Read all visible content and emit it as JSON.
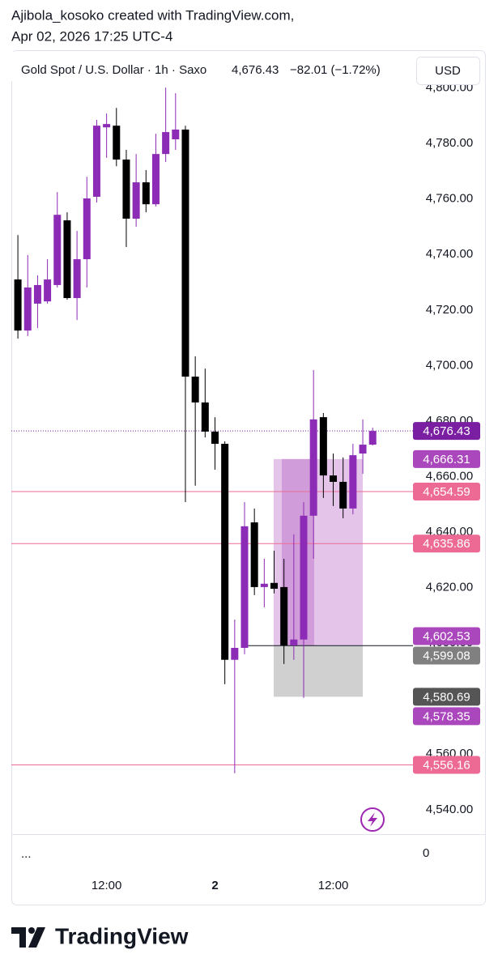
{
  "attribution": [
    "Ajibola_kosoko created with TradingView.com,",
    "Apr 02, 2026 17:25 UTC-4"
  ],
  "brand": "TradingView",
  "chart_data": {
    "type": "candlestick",
    "title": "Gold Spot / U.S. Dollar · 1h · Saxo",
    "last": "4,676.43",
    "change": "−82.01 (−1.72%)",
    "currency": "USD",
    "more": "...",
    "volume_axis_label": 0,
    "categories": [
      null,
      null,
      null,
      null,
      null,
      null,
      null,
      null,
      null,
      "12:00",
      null,
      null,
      null,
      null,
      null,
      null,
      null,
      null,
      null,
      null,
      "2",
      null,
      null,
      null,
      null,
      null,
      null,
      null,
      null,
      null,
      null,
      null,
      "12:00",
      null,
      null,
      null,
      null
    ],
    "open": [
      4731.0,
      4712.6,
      4722.3,
      4723.1,
      4729.0,
      4752.3,
      4724.3,
      4738.3,
      4760.8,
      4785.8,
      4786.4,
      4774.2,
      4752.9,
      4766.0,
      4758.1,
      4776.2,
      4781.5,
      4785.0,
      4696.0,
      4686.7,
      4676.2,
      4671.8,
      4594.0,
      4598.3,
      4643.5,
      4620.2,
      4621.7,
      4620.2,
      4599.2,
      4601.3,
      4645.9,
      4681.4,
      4660.4,
      4658.1,
      4648.5,
      4668.3,
      4671.5
    ],
    "high": [
      4747.0,
      4739.8,
      4732.5,
      4738.3,
      4762.5,
      4755.2,
      4748.5,
      4768.0,
      4788.5,
      4790.8,
      4792.8,
      4777.7,
      4776.2,
      4770.4,
      4783.5,
      4800.1,
      4798.1,
      4786.4,
      4703.3,
      4698.9,
      4681.4,
      4672.7,
      4608.5,
      4650.8,
      4648.5,
      4630.4,
      4633.3,
      4630.4,
      4639.2,
      4650.8,
      4698.4,
      4682.9,
      4668.3,
      4666.9,
      4671.8,
      4680.6,
      4677.6
    ],
    "low": [
      4709.7,
      4710.6,
      4713.5,
      4722.3,
      4728.1,
      4723.7,
      4716.4,
      4728.1,
      4758.7,
      4774.8,
      4771.8,
      4742.7,
      4750.0,
      4755.2,
      4757.3,
      4773.3,
      4777.7,
      4650.8,
      4656.7,
      4674.1,
      4662.5,
      4585.2,
      4553.1,
      4596.0,
      4617.3,
      4612.9,
      4617.9,
      4592.5,
      4594.0,
      4580.3,
      4630.4,
      4652.3,
      4649.4,
      4645.0,
      4646.4,
      4661.0,
      4671.2
    ],
    "close": [
      4712.6,
      4728.1,
      4729.0,
      4731.0,
      4754.3,
      4724.3,
      4738.3,
      4760.2,
      4786.4,
      4787.0,
      4774.2,
      4752.9,
      4766.0,
      4758.1,
      4776.2,
      4784.1,
      4785.0,
      4696.0,
      4686.7,
      4676.2,
      4671.8,
      4594.0,
      4598.3,
      4642.1,
      4620.2,
      4621.4,
      4619.6,
      4599.2,
      4601.3,
      4645.9,
      4680.6,
      4660.4,
      4658.1,
      4648.5,
      4667.7,
      4671.5,
      4676.43
    ],
    "up_color": "#8c2bb5",
    "down_color": "#000000",
    "ylim": [
      4531.2,
      4802.5
    ],
    "yticks": [
      {
        "value": 4540,
        "label": "4,540.00"
      },
      {
        "value": 4560,
        "label": "4,560.00"
      },
      {
        "value": 4580,
        "label": "4,580.00"
      },
      {
        "value": 4600,
        "label": "4,600.00"
      },
      {
        "value": 4620,
        "label": "4,620.00"
      },
      {
        "value": 4640,
        "label": "4,640.00"
      },
      {
        "value": 4660,
        "label": "4,660.00"
      },
      {
        "value": 4680,
        "label": "4,680.00"
      },
      {
        "value": 4700,
        "label": "4,700.00"
      },
      {
        "value": 4720,
        "label": "4,720.00"
      },
      {
        "value": 4740,
        "label": "4,740.00"
      },
      {
        "value": 4760,
        "label": "4,760.00"
      },
      {
        "value": 4780,
        "label": "4,780.00"
      },
      {
        "value": 4800,
        "label": "4,800.00"
      }
    ],
    "price_tags": [
      {
        "value": 4676.43,
        "label": "4,676.43",
        "color": "#7b1fa2",
        "line": "dotted"
      },
      {
        "value": 4666.31,
        "label": "4,666.31",
        "color": "#ab47bc"
      },
      {
        "value": 4654.59,
        "label": "4,654.59",
        "color": "#ec6a93",
        "line": "solid"
      },
      {
        "value": 4635.86,
        "label": "4,635.86",
        "color": "#ec6a93",
        "line": "solid"
      },
      {
        "value": 4602.53,
        "label": "4,602.53",
        "color": "#ab47bc"
      },
      {
        "value": 4599.08,
        "label": "4,599.08",
        "color": "#808080",
        "line": "entry"
      },
      {
        "value": 4580.69,
        "label": "4,580.69",
        "color": "#555555"
      },
      {
        "value": 4578.35,
        "label": "4,578.35",
        "color": "#ab47bc"
      },
      {
        "value": 4556.16,
        "label": "4,556.16",
        "color": "#ec6a93",
        "line": "solid"
      }
    ]
  }
}
